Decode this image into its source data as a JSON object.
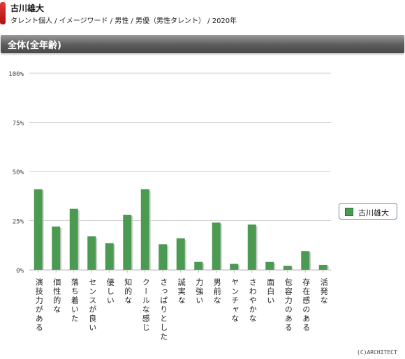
{
  "header": {
    "name": "古川雄大",
    "breadcrumb": "タレント個人 / イメージワード / 男性 / 男優（男性タレント） / 2020年"
  },
  "section": {
    "title": "全体(全年齢)"
  },
  "colors": {
    "bar": "#4b9a52",
    "bar_shadow": "#cfcfcf",
    "grid": "#cccccc",
    "band": "#5c5c5c"
  },
  "chart_data": {
    "type": "bar",
    "categories": [
      "演技力がある",
      "個性的な",
      "落ち着いた",
      "センスが良い",
      "優しい",
      "知的な",
      "クールな感じ",
      "さっぱりとした",
      "誠実な",
      "力強い",
      "男前な",
      "ヤンチャな",
      "さわやかな",
      "面白い",
      "包容力のある",
      "存在感のある",
      "活発な"
    ],
    "series": [
      {
        "name": "古川雄大",
        "values": [
          41,
          22,
          31,
          17,
          13.5,
          28,
          41,
          13,
          16,
          4,
          24,
          3,
          23,
          4,
          2,
          9.5,
          2.5
        ]
      }
    ],
    "ylim": [
      0,
      100
    ],
    "yticks": [
      "0%",
      "25%",
      "50%",
      "75%",
      "100%"
    ],
    "ytick_values": [
      0,
      25,
      50,
      75,
      100
    ],
    "grid": true,
    "legend_position": "right"
  },
  "copyright": "(C)ARCHITECT"
}
